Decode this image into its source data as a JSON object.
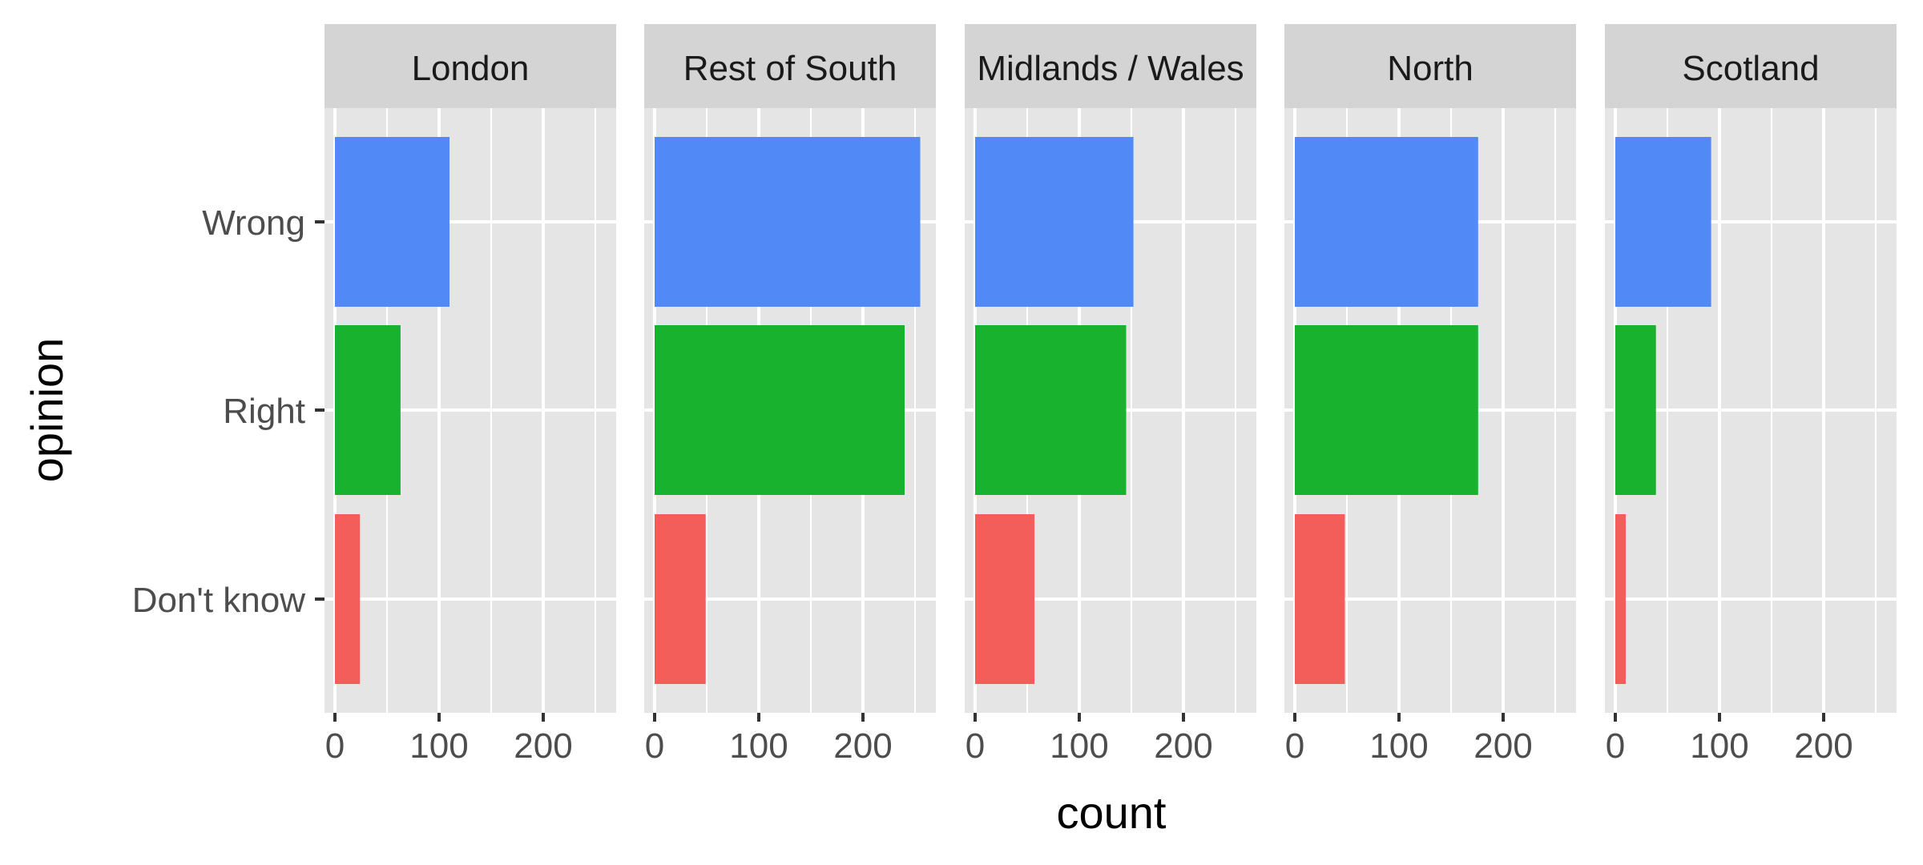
{
  "chart_data": {
    "type": "bar",
    "orientation": "horizontal",
    "facet_by": "region",
    "facets": [
      "London",
      "Rest of South",
      "Midlands / Wales",
      "North",
      "Scotland"
    ],
    "categories": [
      "Wrong",
      "Right",
      "Don't know"
    ],
    "category_colors": {
      "Wrong": "#518af7",
      "Right": "#19b22f",
      "Don't know": "#f35e5b"
    },
    "values": {
      "London": {
        "Wrong": 110,
        "Right": 63,
        "Don't know": 24
      },
      "Rest of South": {
        "Wrong": 255,
        "Right": 240,
        "Don't know": 49
      },
      "Midlands / Wales": {
        "Wrong": 152,
        "Right": 145,
        "Don't know": 57
      },
      "North": {
        "Wrong": 176,
        "Right": 176,
        "Don't know": 48
      },
      "Scotland": {
        "Wrong": 92,
        "Right": 39,
        "Don't know": 10
      }
    },
    "xlabel": "count",
    "ylabel": "opinion",
    "xlim": [
      -10,
      270
    ],
    "xticks": [
      0,
      100,
      200
    ],
    "grid": true,
    "legend": "none"
  },
  "colors": {
    "panel_background": "#e5e5e5",
    "strip_background": "#d4d4d4",
    "grid": "#ffffff"
  }
}
